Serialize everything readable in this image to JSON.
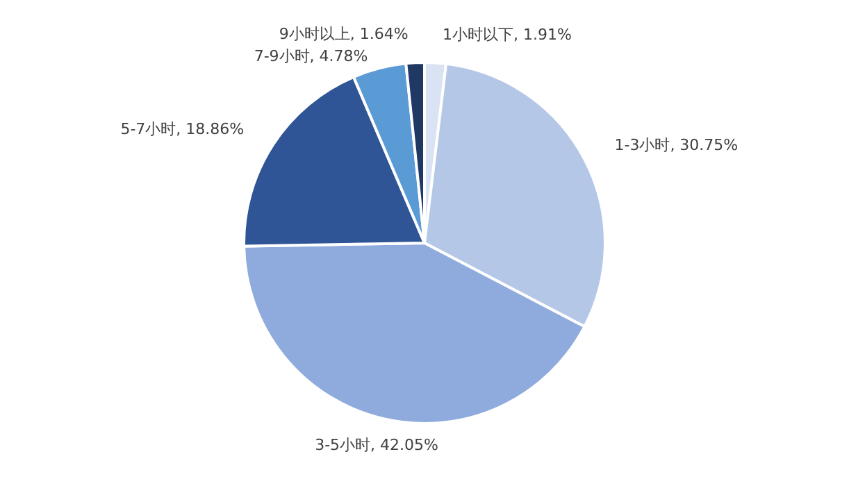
{
  "chart_data": {
    "type": "pie",
    "categories": [
      "1小时以下",
      "1-3小时",
      "3-5小时",
      "5-7小时",
      "7-9小时",
      "9小时以上"
    ],
    "values": [
      1.91,
      30.75,
      42.05,
      18.86,
      4.78,
      1.64
    ],
    "value_labels": [
      "1.91%",
      "30.75%",
      "42.05%",
      "18.86%",
      "4.78%",
      "1.64%"
    ],
    "colors": [
      "#dae3f3",
      "#b4c7e7",
      "#8faadc",
      "#2f5597",
      "#5b9bd5",
      "#203864"
    ]
  }
}
